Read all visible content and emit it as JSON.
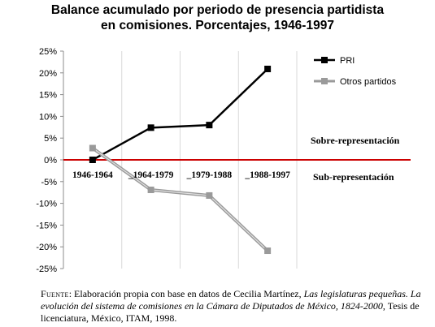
{
  "title_line1": "Balance acumulado por periodo de presencia partidista",
  "title_line2": "en comisiones. Porcentajes, 1946-1997",
  "chart_data": {
    "type": "line",
    "categories": [
      "1946-1964",
      "1964-1979",
      "1979-1988",
      "1988-1997"
    ],
    "category_labels": [
      "1946-1964",
      "_1964-1979",
      "_1979-1988",
      "_1988-1997"
    ],
    "series": [
      {
        "name": "PRI",
        "values": [
          0.0,
          7.4,
          8.0,
          20.9
        ],
        "color": "#000000",
        "marker": "square"
      },
      {
        "name": "Otros partidos",
        "values": [
          2.7,
          -6.9,
          -8.2,
          -20.9
        ],
        "color": "#9a9a9a",
        "marker": "square"
      }
    ],
    "ylim": [
      -25,
      25
    ],
    "yticks": [
      25,
      20,
      15,
      10,
      5,
      0,
      -5,
      -10,
      -15,
      -20,
      -25
    ],
    "ytick_labels": [
      "25%",
      "20%",
      "15%",
      "10%",
      "5%",
      "0%",
      "-5%",
      "-10%",
      "-15%",
      "-20%",
      "-25%"
    ],
    "grid": "vertical",
    "legend": "top-right",
    "zero_line_color": "#cc0000",
    "annotations": [
      "Sobre-representación",
      "Sub-representación"
    ]
  },
  "source": {
    "label": "Fuente",
    "text_before": ": Elaboración propia con base en datos de Cecilia Martínez, ",
    "italic": "Las legislaturas pequeñas. La evolución del sistema de comisiones en la Cámara de Diputados de México, 1824-2000",
    "text_after": ", Tesis de licenciatura, México, ITAM, 1998."
  }
}
